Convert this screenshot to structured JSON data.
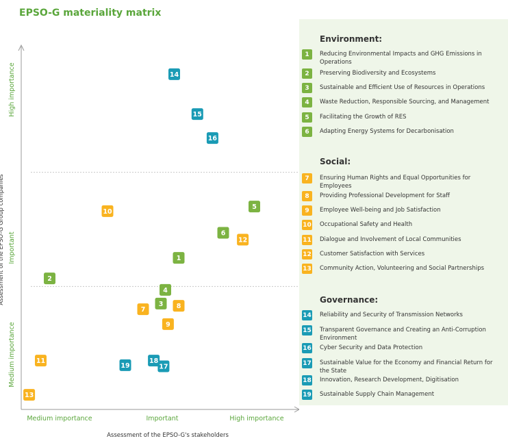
{
  "title": "EPSO-G materiality matrix",
  "colors": {
    "environment": "#7cb342",
    "social": "#f9b320",
    "governance": "#1a9bb5",
    "accent": "#5aa63b"
  },
  "chart_data": {
    "type": "scatter",
    "title": "EPSO-G materiality matrix",
    "xlabel": "Assessment of the EPSO-G's stakeholders",
    "ylabel": "Assessment of the EPSO-G Group companies",
    "x_levels": [
      "Medium importance",
      "Important",
      "High importance"
    ],
    "y_levels": [
      "Medium importance",
      "Important",
      "High importance"
    ],
    "xlim": [
      0,
      3
    ],
    "ylim": [
      0,
      3
    ],
    "points": [
      {
        "id": "1",
        "category": "environment",
        "x": 1.7,
        "y": 1.25
      },
      {
        "id": "2",
        "category": "environment",
        "x": 0.25,
        "y": 1.07
      },
      {
        "id": "3",
        "category": "environment",
        "x": 1.5,
        "y": 0.85
      },
      {
        "id": "4",
        "category": "environment",
        "x": 1.55,
        "y": 0.97
      },
      {
        "id": "5",
        "category": "environment",
        "x": 2.55,
        "y": 1.7
      },
      {
        "id": "6",
        "category": "environment",
        "x": 2.2,
        "y": 1.47
      },
      {
        "id": "7",
        "category": "social",
        "x": 1.3,
        "y": 0.8
      },
      {
        "id": "8",
        "category": "social",
        "x": 1.7,
        "y": 0.83
      },
      {
        "id": "9",
        "category": "social",
        "x": 1.58,
        "y": 0.67
      },
      {
        "id": "10",
        "category": "social",
        "x": 0.9,
        "y": 1.66
      },
      {
        "id": "11",
        "category": "social",
        "x": 0.15,
        "y": 0.35
      },
      {
        "id": "12",
        "category": "social",
        "x": 2.42,
        "y": 1.41
      },
      {
        "id": "13",
        "category": "social",
        "x": 0.02,
        "y": 0.05
      },
      {
        "id": "14",
        "category": "governance",
        "x": 1.65,
        "y": 2.86
      },
      {
        "id": "15",
        "category": "governance",
        "x": 1.91,
        "y": 2.51
      },
      {
        "id": "16",
        "category": "governance",
        "x": 2.08,
        "y": 2.3
      },
      {
        "id": "17",
        "category": "governance",
        "x": 1.53,
        "y": 0.3
      },
      {
        "id": "18",
        "category": "governance",
        "x": 1.42,
        "y": 0.35
      },
      {
        "id": "19",
        "category": "governance",
        "x": 1.1,
        "y": 0.31
      }
    ],
    "thresholds": {
      "y": [
        1.0,
        2.0
      ]
    }
  },
  "legend": [
    {
      "heading": "Environment:",
      "category": "environment",
      "items": [
        {
          "id": "1",
          "text": "Reducing Environmental Impacts and GHG Emissions in Operations"
        },
        {
          "id": "2",
          "text": "Preserving Biodiversity and Ecosystems"
        },
        {
          "id": "3",
          "text": "Sustainable and Efficient Use of Resources in Operations"
        },
        {
          "id": "4",
          "text": "Waste Reduction, Responsible Sourcing, and Management"
        },
        {
          "id": "5",
          "text": "Facilitating the Growth of RES"
        },
        {
          "id": "6",
          "text": "Adapting Energy Systems for Decarbonisation"
        }
      ]
    },
    {
      "heading": "Social:",
      "category": "social",
      "items": [
        {
          "id": "7",
          "text": "Ensuring Human Rights and Equal Opportunities for Employees"
        },
        {
          "id": "8",
          "text": "Providing Professional Development for Staff"
        },
        {
          "id": "9",
          "text": "Employee Well-being and Job Satisfaction"
        },
        {
          "id": "10",
          "text": "Occupational Safety and Health"
        },
        {
          "id": "11",
          "text": "Dialogue and Involvement of Local Communities"
        },
        {
          "id": "12",
          "text": "Customer Satisfaction with Services"
        },
        {
          "id": "13",
          "text": "Community Action, Volunteering and Social Partnerships"
        }
      ]
    },
    {
      "heading": "Governance:",
      "category": "governance",
      "items": [
        {
          "id": "14",
          "text": "Reliability and Security of Transmission Networks"
        },
        {
          "id": "15",
          "text": "Transparent Governance and Creating an Anti-Corruption Environment"
        },
        {
          "id": "16",
          "text": "Cyber Security and Data Protection"
        },
        {
          "id": "17",
          "text": "Sustainable Value for the Economy and Financial Return for the State"
        },
        {
          "id": "18",
          "text": "Innovation, Research Development, Digitisation"
        },
        {
          "id": "19",
          "text": "Sustainable Supply Chain Management"
        }
      ]
    }
  ]
}
